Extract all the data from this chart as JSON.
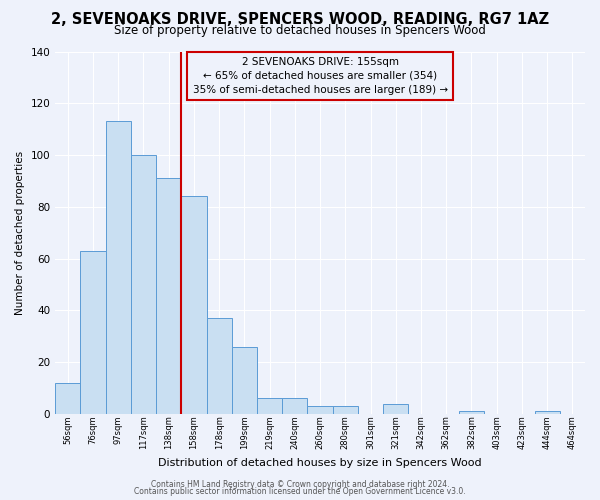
{
  "title": "2, SEVENOAKS DRIVE, SPENCERS WOOD, READING, RG7 1AZ",
  "subtitle": "Size of property relative to detached houses in Spencers Wood",
  "xlabel": "Distribution of detached houses by size in Spencers Wood",
  "ylabel": "Number of detached properties",
  "bar_labels": [
    "56sqm",
    "76sqm",
    "97sqm",
    "117sqm",
    "138sqm",
    "158sqm",
    "178sqm",
    "199sqm",
    "219sqm",
    "240sqm",
    "260sqm",
    "280sqm",
    "301sqm",
    "321sqm",
    "342sqm",
    "362sqm",
    "382sqm",
    "403sqm",
    "423sqm",
    "444sqm",
    "464sqm"
  ],
  "bar_heights": [
    12,
    63,
    113,
    100,
    91,
    84,
    37,
    26,
    6,
    6,
    3,
    3,
    0,
    4,
    0,
    0,
    1,
    0,
    0,
    1,
    0
  ],
  "bar_color": "#c9dff2",
  "bar_edge_color": "#5b9bd5",
  "vline_x_index": 5,
  "vline_color": "#cc0000",
  "annotation_title": "2 SEVENOAKS DRIVE: 155sqm",
  "annotation_line1": "← 65% of detached houses are smaller (354)",
  "annotation_line2": "35% of semi-detached houses are larger (189) →",
  "annotation_box_color": "#cc0000",
  "ylim": [
    0,
    140
  ],
  "yticks": [
    0,
    20,
    40,
    60,
    80,
    100,
    120,
    140
  ],
  "footer1": "Contains HM Land Registry data © Crown copyright and database right 2024.",
  "footer2": "Contains public sector information licensed under the Open Government Licence v3.0.",
  "background_color": "#eef2fb",
  "title_fontsize": 10.5,
  "subtitle_fontsize": 8.5,
  "grid_color": "#ffffff"
}
